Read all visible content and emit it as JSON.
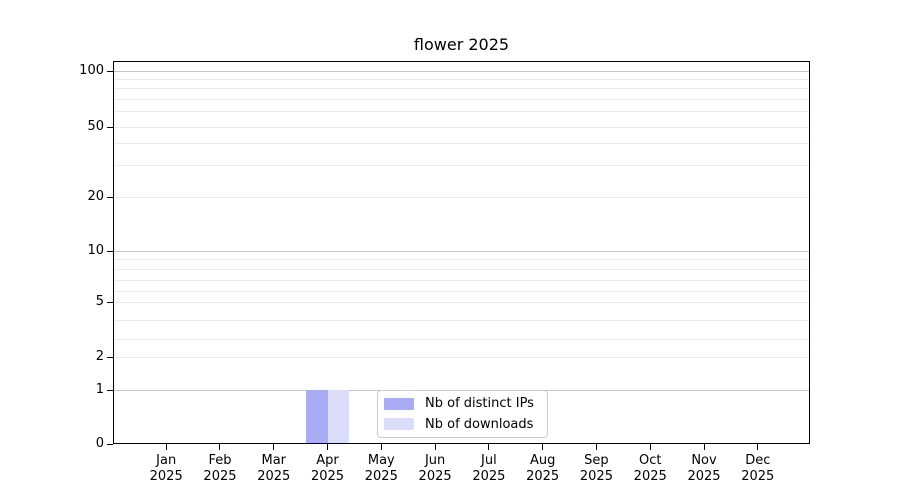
{
  "title": "flower 2025",
  "chart_data": {
    "type": "bar",
    "title": "flower 2025",
    "categories": [
      "Jan 2025",
      "Feb 2025",
      "Mar 2025",
      "Apr 2025",
      "May 2025",
      "Jun 2025",
      "Jul 2025",
      "Aug 2025",
      "Sep 2025",
      "Oct 2025",
      "Nov 2025",
      "Dec 2025"
    ],
    "series": [
      {
        "name": "Nb of distinct IPs",
        "color": "#a9abf5",
        "values": [
          0,
          0,
          0,
          1,
          0,
          0,
          0,
          0,
          0,
          0,
          0,
          0
        ]
      },
      {
        "name": "Nb of downloads",
        "color": "#dbddfb",
        "values": [
          0,
          0,
          0,
          1,
          0,
          0,
          0,
          0,
          0,
          0,
          0,
          0
        ]
      }
    ],
    "xlabel": "",
    "ylabel": "",
    "ylim": [
      0,
      100
    ],
    "yscale": "log-like with 0 baseline",
    "y_tick_labels": [
      "100",
      "50",
      "20",
      "10",
      "5",
      "2",
      "1",
      "0"
    ],
    "grid": "horizontal, dark lines at decades (100/10/1), faint minor log lines",
    "legend_position": "inside bottom center"
  },
  "y_axis": {
    "ticks": [
      "100",
      "50",
      "20",
      "10",
      "5",
      "2",
      "1",
      "0"
    ]
  },
  "x_axis": {
    "months": [
      "Jan",
      "Feb",
      "Mar",
      "Apr",
      "May",
      "Jun",
      "Jul",
      "Aug",
      "Sep",
      "Oct",
      "Nov",
      "Dec"
    ],
    "year": "2025"
  },
  "legend": {
    "items": [
      {
        "label": "Nb of distinct IPs",
        "color": "#a9abf5"
      },
      {
        "label": "Nb of downloads",
        "color": "#dbddfb"
      }
    ]
  }
}
